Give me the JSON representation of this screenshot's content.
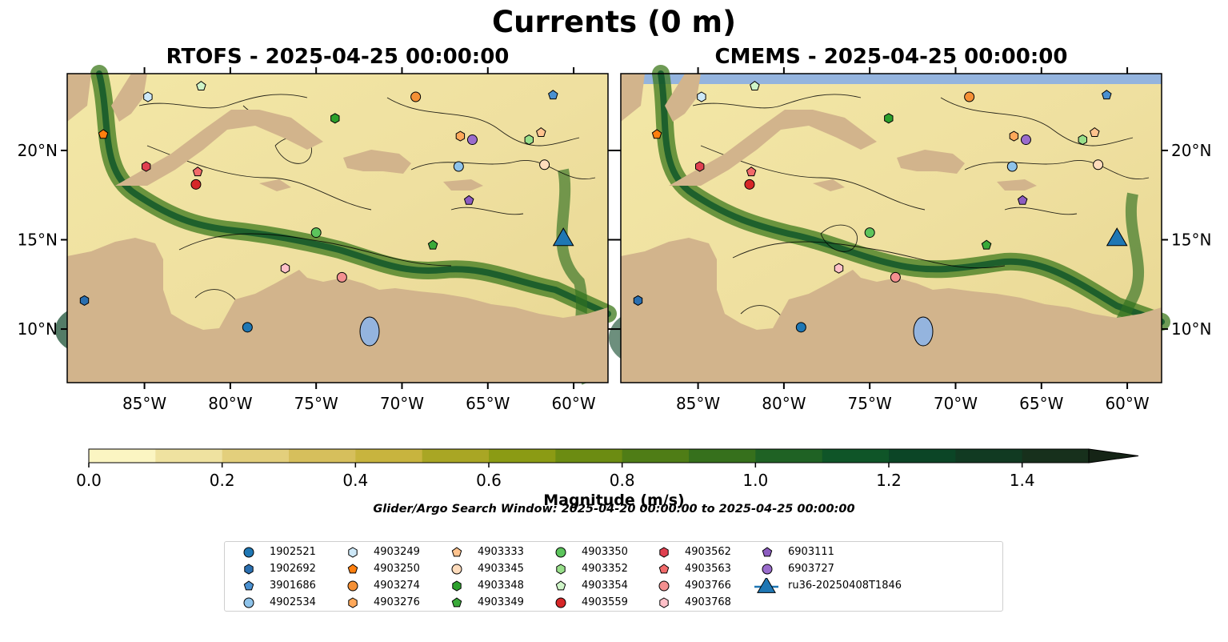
{
  "figure": {
    "title": "Currents (0 m)",
    "panels": [
      {
        "title": "RTOFS - 2025-04-25 00:00:00"
      },
      {
        "title": "CMEMS - 2025-04-25 00:00:00"
      }
    ]
  },
  "map": {
    "lon_range": [
      -89.5,
      -58
    ],
    "lat_range": [
      7,
      24.3
    ],
    "lon_ticks": [
      {
        "value": -85,
        "label": "85°W"
      },
      {
        "value": -80,
        "label": "80°W"
      },
      {
        "value": -75,
        "label": "75°W"
      },
      {
        "value": -70,
        "label": "70°W"
      },
      {
        "value": -65,
        "label": "65°W"
      },
      {
        "value": -60,
        "label": "60°W"
      }
    ],
    "lat_ticks": [
      {
        "value": 10,
        "label": "10°N"
      },
      {
        "value": 15,
        "label": "15°N"
      },
      {
        "value": 20,
        "label": "20°N"
      }
    ],
    "colors": {
      "land": "#d2b48c",
      "lake": "#94b4de",
      "ocean_low": "#f8efb8",
      "ocean_high": "#0a5a2a"
    }
  },
  "colorbar": {
    "label": "Magnitude (m/s)",
    "min": 0.0,
    "max": 1.5,
    "extend": "max",
    "ticks": [
      {
        "value": 0.0,
        "label": "0.0"
      },
      {
        "value": 0.2,
        "label": "0.2"
      },
      {
        "value": 0.4,
        "label": "0.4"
      },
      {
        "value": 0.6,
        "label": "0.6"
      },
      {
        "value": 0.8,
        "label": "0.8"
      },
      {
        "value": 1.0,
        "label": "1.0"
      },
      {
        "value": 1.2,
        "label": "1.2"
      },
      {
        "value": 1.4,
        "label": "1.4"
      }
    ],
    "colors": [
      "#fbf5c2",
      "#efe2a0",
      "#e3cf7c",
      "#d6bf5c",
      "#c8b43e",
      "#a9a624",
      "#8b9b14",
      "#6c8c12",
      "#4f7d16",
      "#36701c",
      "#1f6224",
      "#0f5528",
      "#0b4526",
      "#113a22",
      "#17301c",
      "#152416"
    ]
  },
  "search_window": "Glider/Argo Search Window: 2025-04-20 00:00:00 to 2025-04-25 00:00:00",
  "legend": {
    "entries": [
      {
        "label": "1902521",
        "color": "#1f77b4",
        "marker": "circle"
      },
      {
        "label": "1902692",
        "color": "#2a6fb0",
        "marker": "hexagon"
      },
      {
        "label": "3901686",
        "color": "#4a90d0",
        "marker": "pentagon"
      },
      {
        "label": "4902534",
        "color": "#8ec3ea",
        "marker": "circle"
      },
      {
        "label": "4903249",
        "color": "#cde8f8",
        "marker": "hexagon"
      },
      {
        "label": "4903250",
        "color": "#ff7f0e",
        "marker": "pentagon"
      },
      {
        "label": "4903274",
        "color": "#f59035",
        "marker": "circle"
      },
      {
        "label": "4903276",
        "color": "#ffa85a",
        "marker": "hexagon"
      },
      {
        "label": "4903333",
        "color": "#ffc38e",
        "marker": "pentagon"
      },
      {
        "label": "4903345",
        "color": "#ffdcbc",
        "marker": "circle"
      },
      {
        "label": "4903348",
        "color": "#2ca02c",
        "marker": "hexagon"
      },
      {
        "label": "4903349",
        "color": "#3aaa3a",
        "marker": "pentagon"
      },
      {
        "label": "4903350",
        "color": "#5cc45c",
        "marker": "circle"
      },
      {
        "label": "4903352",
        "color": "#98df8a",
        "marker": "hexagon"
      },
      {
        "label": "4903354",
        "color": "#cff5c8",
        "marker": "pentagon"
      },
      {
        "label": "4903559",
        "color": "#d62728",
        "marker": "circle"
      },
      {
        "label": "4903562",
        "color": "#e04050",
        "marker": "hexagon"
      },
      {
        "label": "4903563",
        "color": "#f26a6a",
        "marker": "pentagon"
      },
      {
        "label": "4903766",
        "color": "#f49090",
        "marker": "circle"
      },
      {
        "label": "4903768",
        "color": "#ffc0c8",
        "marker": "hexagon"
      },
      {
        "label": "6903111",
        "color": "#8c5cc0",
        "marker": "pentagon"
      },
      {
        "label": "6903727",
        "color": "#9a6ccc",
        "marker": "circle"
      },
      {
        "label": "ru36-20250408T1846",
        "color": "#1f77b4",
        "marker": "triangle-line"
      }
    ]
  },
  "floats": [
    {
      "label": "1902521",
      "lon": -79.0,
      "lat": 10.1
    },
    {
      "label": "1902692",
      "lon": -88.5,
      "lat": 11.6
    },
    {
      "label": "3901686",
      "lon": -61.2,
      "lat": 23.1
    },
    {
      "label": "4902534",
      "lon": -66.7,
      "lat": 19.1
    },
    {
      "label": "4903249",
      "lon": -84.8,
      "lat": 23.0
    },
    {
      "label": "4903250",
      "lon": -87.4,
      "lat": 20.9
    },
    {
      "label": "4903274",
      "lon": -69.2,
      "lat": 23.0
    },
    {
      "label": "4903276",
      "lon": -66.6,
      "lat": 20.8
    },
    {
      "label": "4903333",
      "lon": -61.9,
      "lat": 21.0
    },
    {
      "label": "4903345",
      "lon": -61.7,
      "lat": 19.2
    },
    {
      "label": "4903348",
      "lon": -73.9,
      "lat": 21.8
    },
    {
      "label": "4903349",
      "lon": -68.2,
      "lat": 14.7
    },
    {
      "label": "4903350",
      "lon": -75.0,
      "lat": 15.4
    },
    {
      "label": "4903352",
      "lon": -62.6,
      "lat": 20.6
    },
    {
      "label": "4903354",
      "lon": -81.7,
      "lat": 23.6
    },
    {
      "label": "4903559",
      "lon": -82.0,
      "lat": 18.1
    },
    {
      "label": "4903562",
      "lon": -84.9,
      "lat": 19.1
    },
    {
      "label": "4903563",
      "lon": -81.9,
      "lat": 18.8
    },
    {
      "label": "4903766",
      "lon": -73.5,
      "lat": 12.9
    },
    {
      "label": "4903768",
      "lon": -76.8,
      "lat": 13.4
    },
    {
      "label": "6903111",
      "lon": -66.1,
      "lat": 17.2
    },
    {
      "label": "6903727",
      "lon": -65.9,
      "lat": 20.6
    },
    {
      "label": "ru36-20250408T1846",
      "lon": -60.6,
      "lat": 15.1
    }
  ]
}
